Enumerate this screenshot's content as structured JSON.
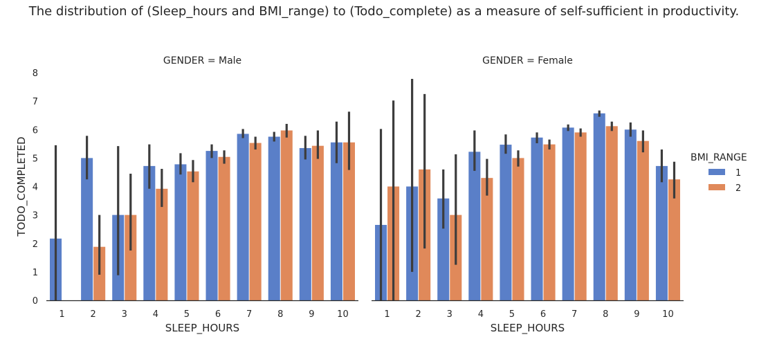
{
  "chart_data": {
    "type": "bar",
    "title": "The distribution of (Sleep_hours and BMI_range) to (Todo_complete) as a measure of self-sufficient in productivity.",
    "xlabel": "SLEEP_HOURS",
    "ylabel": "TODO_COMPLETED",
    "ylim": [
      0,
      8
    ],
    "yticks": [
      0,
      1,
      2,
      3,
      4,
      5,
      6,
      7,
      8
    ],
    "categories": [
      "1",
      "2",
      "3",
      "4",
      "5",
      "6",
      "7",
      "8",
      "9",
      "10"
    ],
    "legend": {
      "title": "BMI_RANGE",
      "placement": "right"
    },
    "grid": false,
    "series_colors": [
      "#5a7fc8",
      "#e0895a"
    ],
    "error_color": "#3c3c3c",
    "panels": [
      {
        "title": "GENDER = Male",
        "series": [
          {
            "name": "1",
            "values": [
              2.17,
              5.0,
              3.0,
              4.72,
              4.78,
              5.25,
              5.85,
              5.75,
              5.35,
              5.55
            ],
            "ci": [
              [
                0.0,
                5.45
              ],
              [
                4.25,
                5.78
              ],
              [
                0.88,
                5.42
              ],
              [
                3.92,
                5.48
              ],
              [
                4.42,
                5.17
              ],
              [
                5.0,
                5.48
              ],
              [
                5.7,
                6.02
              ],
              [
                5.58,
                5.92
              ],
              [
                4.95,
                5.78
              ],
              [
                4.82,
                6.28
              ]
            ]
          },
          {
            "name": "2",
            "values": [
              null,
              1.88,
              3.0,
              3.92,
              4.53,
              5.04,
              5.53,
              5.97,
              5.43,
              5.55
            ],
            "ci": [
              null,
              [
                0.9,
                3.0
              ],
              [
                1.75,
                4.45
              ],
              [
                3.28,
                4.62
              ],
              [
                4.15,
                4.93
              ],
              [
                4.8,
                5.27
              ],
              [
                5.3,
                5.75
              ],
              [
                5.72,
                6.2
              ],
              [
                4.97,
                5.97
              ],
              [
                4.58,
                6.63
              ]
            ]
          }
        ]
      },
      {
        "title": "GENDER = Female",
        "series": [
          {
            "name": "1",
            "values": [
              2.65,
              4.0,
              3.58,
              5.22,
              5.47,
              5.72,
              6.07,
              6.57,
              6.0,
              4.72
            ],
            "ci": [
              [
                0.0,
                6.02
              ],
              [
                1.0,
                7.78
              ],
              [
                2.52,
                4.6
              ],
              [
                4.55,
                5.97
              ],
              [
                5.15,
                5.83
              ],
              [
                5.52,
                5.9
              ],
              [
                5.95,
                6.18
              ],
              [
                6.45,
                6.67
              ],
              [
                5.75,
                6.25
              ],
              [
                4.15,
                5.3
              ]
            ]
          },
          {
            "name": "2",
            "values": [
              4.0,
              4.6,
              3.0,
              4.3,
              5.0,
              5.48,
              5.9,
              6.12,
              5.6,
              4.25
            ],
            "ci": [
              [
                0.0,
                7.02
              ],
              [
                1.82,
                7.25
              ],
              [
                1.25,
                5.13
              ],
              [
                3.68,
                4.97
              ],
              [
                4.7,
                5.27
              ],
              [
                5.3,
                5.65
              ],
              [
                5.75,
                6.04
              ],
              [
                5.95,
                6.28
              ],
              [
                5.2,
                5.97
              ],
              [
                3.58,
                4.87
              ]
            ]
          }
        ]
      }
    ]
  }
}
